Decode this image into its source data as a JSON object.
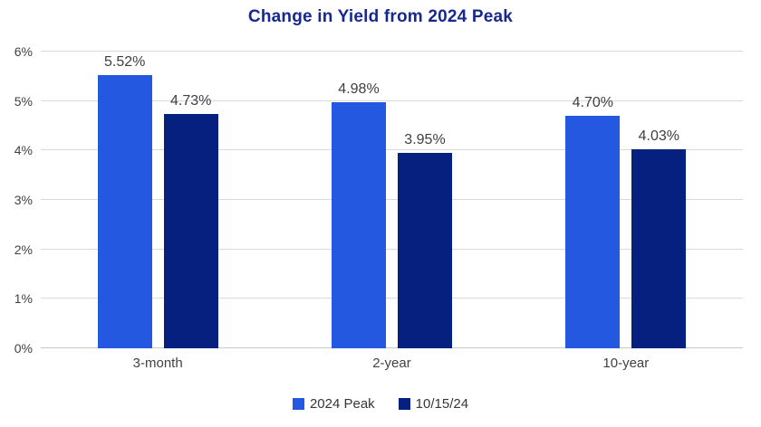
{
  "chart_data": {
    "type": "bar",
    "title": "Change in Yield from 2024 Peak",
    "title_color": "#17288F",
    "background_color": "#FFFFFF",
    "categories": [
      "3-month",
      "2-year",
      "10-year"
    ],
    "series": [
      {
        "name": "2024 Peak",
        "color": "#2458E0",
        "values": [
          5.52,
          4.98,
          4.7
        ],
        "labels": [
          "5.52%",
          "4.98%",
          "4.70%"
        ]
      },
      {
        "name": "10/15/24",
        "color": "#05207E",
        "values": [
          4.73,
          3.95,
          4.03
        ],
        "labels": [
          "4.73%",
          "3.95%",
          "4.03%"
        ]
      }
    ],
    "xlabel": "",
    "ylabel": "",
    "ylim": [
      0,
      6
    ],
    "yticks": [
      "0%",
      "1%",
      "2%",
      "3%",
      "4%",
      "5%",
      "6%"
    ],
    "grid": true,
    "gridline_color": "#D9D9D9",
    "axis_text_color": "#3F4245",
    "value_label_color": "#3C4043",
    "legend_position": "bottom"
  }
}
